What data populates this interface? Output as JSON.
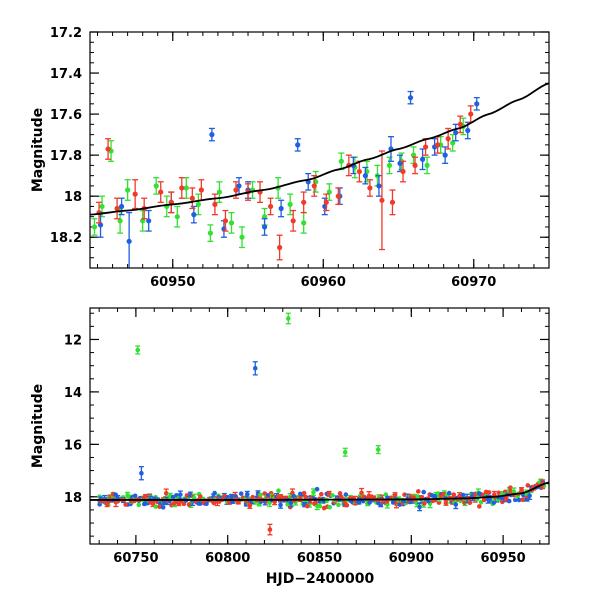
{
  "colors": {
    "green": "#33e033",
    "blue": "#1f5fe0",
    "red": "#f03a2a",
    "model": "#000000",
    "axis": "#000000"
  },
  "chart_data": [
    {
      "type": "scatter",
      "title": "",
      "xlabel": "",
      "ylabel": "Magnitude",
      "xlim": [
        60944.5,
        60975
      ],
      "ylim": [
        18.35,
        17.2
      ],
      "y_inverted": true,
      "xticks": [
        60950,
        60960,
        60970
      ],
      "xtick_labels": [
        "60950",
        "60960",
        "60970"
      ],
      "yticks": [
        17.2,
        17.4,
        17.6,
        17.8,
        18,
        18.2
      ],
      "ytick_labels": [
        "17.2",
        "17.4",
        "17.6",
        "17.8",
        "18",
        "18.2"
      ],
      "model_curve": {
        "name": "fit",
        "x": [
          60944.5,
          60947,
          60950,
          60953,
          60956,
          60959,
          60961,
          60963,
          60965,
          60967,
          60969,
          60971,
          60973,
          60975
        ],
        "y": [
          18.09,
          18.07,
          18.04,
          18.01,
          17.97,
          17.92,
          17.87,
          17.82,
          17.77,
          17.72,
          17.67,
          17.6,
          17.53,
          17.45
        ]
      },
      "series": [
        {
          "name": "green",
          "x": [
            60944.8,
            60945.3,
            60945.9,
            60946.5,
            60947.0,
            60948.0,
            60948.9,
            60949.6,
            60950.3,
            60950.9,
            60951.7,
            60952.5,
            60953.1,
            60953.9,
            60954.6,
            60955.3,
            60956.1,
            60957.0,
            60957.8,
            60958.7,
            60959.5,
            60960.4,
            60961.2,
            60962.1,
            60962.9,
            60963.6,
            60964.4,
            60965.2,
            60966.0,
            60966.9,
            60967.8,
            60968.6,
            60969.3
          ],
          "y": [
            18.15,
            18.05,
            17.78,
            18.12,
            17.97,
            18.12,
            17.95,
            18.05,
            18.1,
            17.96,
            18.04,
            18.18,
            17.98,
            18.13,
            18.2,
            17.97,
            18.1,
            17.96,
            18.04,
            18.13,
            17.93,
            17.98,
            17.83,
            17.86,
            17.88,
            17.9,
            17.85,
            17.83,
            17.8,
            17.85,
            17.75,
            17.74,
            17.66
          ],
          "err": [
            0.04,
            0.05,
            0.05,
            0.06,
            0.05,
            0.05,
            0.04,
            0.05,
            0.05,
            0.05,
            0.05,
            0.04,
            0.05,
            0.05,
            0.05,
            0.04,
            0.04,
            0.05,
            0.05,
            0.05,
            0.05,
            0.04,
            0.04,
            0.05,
            0.05,
            0.05,
            0.04,
            0.04,
            0.04,
            0.04,
            0.04,
            0.04,
            0.04
          ]
        },
        {
          "name": "blue",
          "x": [
            60945.2,
            60946.6,
            60947.1,
            60948.4,
            60949.9,
            60951.4,
            60952.6,
            60953.4,
            60954.4,
            60955.0,
            60956.1,
            60957.2,
            60958.3,
            60959.0,
            60960.1,
            60961.1,
            60962.0,
            60962.8,
            60963.7,
            60964.5,
            60965.1,
            60965.8,
            60966.6,
            60967.4,
            60968.1,
            60968.8,
            60969.6,
            60970.2
          ],
          "y": [
            18.14,
            18.05,
            18.22,
            18.12,
            18.03,
            18.09,
            17.7,
            18.16,
            17.95,
            17.97,
            18.15,
            18.06,
            17.75,
            17.93,
            18.05,
            18.0,
            17.85,
            17.9,
            17.95,
            17.77,
            17.84,
            17.52,
            17.82,
            17.76,
            17.8,
            17.69,
            17.68,
            17.55
          ],
          "err": [
            0.06,
            0.04,
            0.14,
            0.05,
            0.05,
            0.04,
            0.03,
            0.04,
            0.04,
            0.04,
            0.04,
            0.04,
            0.03,
            0.04,
            0.04,
            0.04,
            0.04,
            0.04,
            0.05,
            0.06,
            0.04,
            0.03,
            0.05,
            0.04,
            0.04,
            0.04,
            0.04,
            0.03
          ]
        },
        {
          "name": "red",
          "x": [
            60945.1,
            60945.7,
            60946.3,
            60947.5,
            60948.1,
            60949.2,
            60949.9,
            60950.6,
            60951.3,
            60951.9,
            60952.8,
            60953.5,
            60954.2,
            60955.0,
            60955.8,
            60956.5,
            60957.1,
            60958.0,
            60958.7,
            60959.4,
            60960.2,
            60961.0,
            60961.7,
            60962.4,
            60963.1,
            60963.9,
            60964.6,
            60965.3,
            60966.1,
            60966.8,
            60967.6,
            60968.3,
            60969.1,
            60969.8
          ],
          "y": [
            18.08,
            17.77,
            18.06,
            17.99,
            18.06,
            17.98,
            18.03,
            17.96,
            18.01,
            17.97,
            18.04,
            18.12,
            17.97,
            17.98,
            17.98,
            18.05,
            18.25,
            18.12,
            18.03,
            17.95,
            18.03,
            18.0,
            17.85,
            17.88,
            17.96,
            18.02,
            18.03,
            17.88,
            17.85,
            17.76,
            17.75,
            17.72,
            17.65,
            17.6
          ],
          "err": [
            0.05,
            0.05,
            0.05,
            0.07,
            0.05,
            0.05,
            0.05,
            0.05,
            0.05,
            0.05,
            0.05,
            0.05,
            0.04,
            0.04,
            0.05,
            0.04,
            0.06,
            0.05,
            0.05,
            0.05,
            0.04,
            0.04,
            0.05,
            0.05,
            0.04,
            0.24,
            0.06,
            0.05,
            0.04,
            0.04,
            0.04,
            0.05,
            0.04,
            0.04
          ]
        }
      ]
    },
    {
      "type": "scatter",
      "title": "",
      "xlabel": "HJD−2400000",
      "ylabel": "Magnitude",
      "xlim": [
        60725,
        60975
      ],
      "ylim": [
        19.8,
        10.8
      ],
      "y_inverted": true,
      "xticks": [
        60750,
        60800,
        60850,
        60900,
        60950
      ],
      "xtick_labels": [
        "60750",
        "60800",
        "60850",
        "60900",
        "60950"
      ],
      "yticks": [
        12,
        14,
        16,
        18
      ],
      "ytick_labels": [
        "12",
        "14",
        "16",
        "18"
      ],
      "model_curve": {
        "name": "fit",
        "x": [
          60725,
          60800,
          60900,
          60930,
          60945,
          60960,
          60975
        ],
        "y": [
          18.12,
          18.12,
          18.1,
          18.06,
          18.0,
          17.87,
          17.45
        ]
      },
      "outliers": {
        "green": {
          "x": [
            60751,
            60833,
            60864,
            60882
          ],
          "y": [
            12.4,
            11.2,
            16.3,
            16.2
          ],
          "err": [
            0.15,
            0.2,
            0.15,
            0.15
          ]
        },
        "blue": {
          "x": [
            60753,
            60815
          ],
          "y": [
            17.1,
            13.1
          ],
          "err": [
            0.25,
            0.25
          ]
        },
        "red": {
          "x": [
            60823
          ],
          "y": [
            19.25
          ],
          "err": [
            0.2
          ]
        }
      },
      "bulk_band": {
        "x_start": 60730,
        "x_end": 60972,
        "x_step": 1.5,
        "center_mag": 18.1,
        "scatter_mag": 0.12,
        "series_order": [
          "green",
          "blue",
          "red"
        ]
      }
    }
  ]
}
